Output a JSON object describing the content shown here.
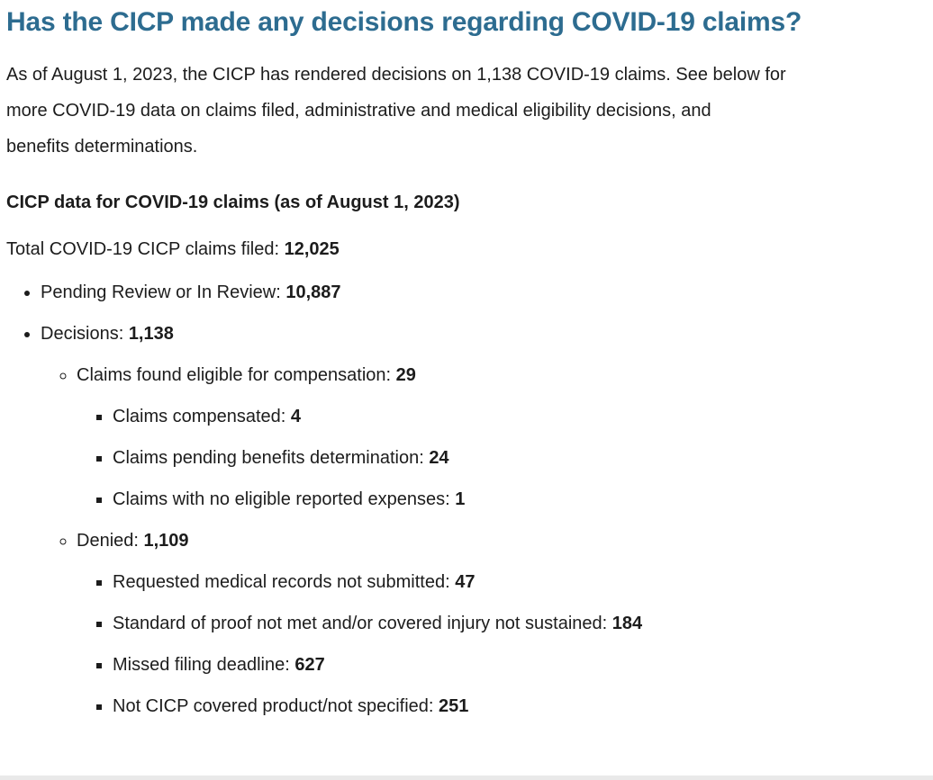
{
  "page": {
    "heading": "Has the CICP made any decisions regarding COVID-19 claims?",
    "intro": "As of August 1, 2023, the CICP has rendered decisions on 1,138 COVID-19 claims. See below for\nmore COVID-19 data on claims filed, administrative and medical eligibility decisions, and\nbenefits determinations.",
    "data_title": "CICP data for COVID-19 claims (as of August 1, 2023)",
    "total": {
      "label": "Total COVID-19 CICP claims filed: ",
      "value": "12,025"
    }
  },
  "claims": {
    "pending_review": {
      "label": "Pending Review or In Review: ",
      "value": "10,887"
    },
    "decisions": {
      "label": "Decisions: ",
      "value": "1,138"
    },
    "eligible": {
      "label": "Claims found eligible for compensation: ",
      "value": "29"
    },
    "compensated": {
      "label": "Claims compensated: ",
      "value": "4"
    },
    "pending_benefits": {
      "label": "Claims pending benefits determination: ",
      "value": "24"
    },
    "no_eligible_expenses": {
      "label": "Claims with no eligible reported expenses: ",
      "value": "1"
    },
    "denied": {
      "label": "Denied: ",
      "value": "1,109"
    },
    "records_not_submitted": {
      "label": "Requested medical records not submitted: ",
      "value": "47"
    },
    "standard_of_proof": {
      "label": "Standard of proof not met and/or covered injury not sustained: ",
      "value": "184"
    },
    "missed_deadline": {
      "label": "Missed filing deadline: ",
      "value": "627"
    },
    "not_covered": {
      "label": "Not CICP covered product/not specified: ",
      "value": "251"
    }
  },
  "colors": {
    "heading_accent": "#2d6c90",
    "body_text": "#1c1c1c",
    "background": "#ffffff",
    "bottom_rule": "#e9e9e9"
  }
}
